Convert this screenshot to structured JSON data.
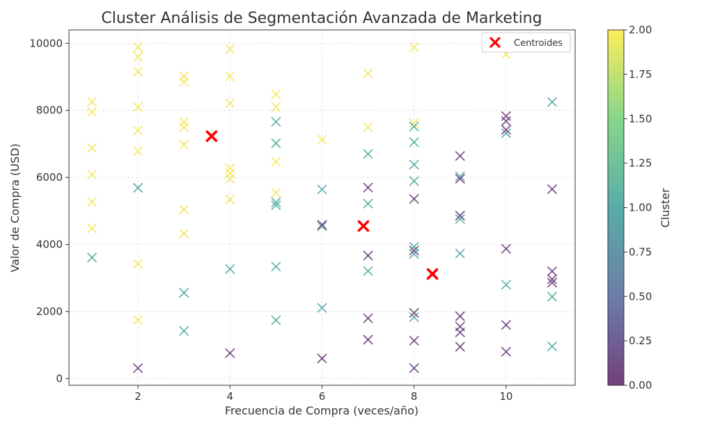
{
  "chart_data": {
    "type": "scatter",
    "title": "Cluster Análisis de Segmentación Avanzada de Marketing",
    "xlabel": "Frecuencia de Compra (veces/año)",
    "ylabel": "Valor de Compra (USD)",
    "xlim": [
      0.5,
      11.5
    ],
    "ylim": [
      -200,
      10400
    ],
    "xticks": [
      2,
      4,
      6,
      8,
      10
    ],
    "yticks": [
      0,
      2000,
      4000,
      6000,
      8000,
      10000
    ],
    "grid": true,
    "marker": "x",
    "colorbar": {
      "label": "Cluster",
      "range": [
        0,
        2
      ],
      "ticks": [
        "0.00",
        "0.25",
        "0.50",
        "0.75",
        "1.00",
        "1.25",
        "1.50",
        "1.75",
        "2.00"
      ],
      "colormap": [
        "#440154",
        "#3b528b",
        "#21918c",
        "#5ec962",
        "#fde725"
      ]
    },
    "legend": {
      "label": "Centroides",
      "position": "top-right",
      "color": "#ff0000"
    },
    "series": [
      {
        "cluster": 2,
        "color": "#f4e55a",
        "points": [
          [
            1,
            8250
          ],
          [
            1,
            7950
          ],
          [
            1,
            6880
          ],
          [
            1,
            6080
          ],
          [
            1,
            5270
          ],
          [
            1,
            4480
          ],
          [
            2,
            9880
          ],
          [
            2,
            9600
          ],
          [
            2,
            9150
          ],
          [
            2,
            8100
          ],
          [
            2,
            7400
          ],
          [
            2,
            6780
          ],
          [
            2,
            3420
          ],
          [
            2,
            1750
          ],
          [
            3,
            9020
          ],
          [
            3,
            8850
          ],
          [
            3,
            7650
          ],
          [
            3,
            7500
          ],
          [
            3,
            6990
          ],
          [
            3,
            5040
          ],
          [
            3,
            4320
          ],
          [
            4,
            9830
          ],
          [
            4,
            9010
          ],
          [
            4,
            8210
          ],
          [
            4,
            6270
          ],
          [
            4,
            6120
          ],
          [
            4,
            5960
          ],
          [
            4,
            5340
          ],
          [
            5,
            8480
          ],
          [
            5,
            8100
          ],
          [
            5,
            6470
          ],
          [
            5,
            5540
          ],
          [
            6,
            7130
          ],
          [
            7,
            9100
          ],
          [
            7,
            7500
          ],
          [
            8,
            9880
          ],
          [
            8,
            7620
          ],
          [
            10,
            9680
          ]
        ]
      },
      {
        "cluster": 1,
        "color": "#4fa9a0",
        "points": [
          [
            1,
            3610
          ],
          [
            2,
            5690
          ],
          [
            3,
            2560
          ],
          [
            3,
            1420
          ],
          [
            4,
            3270
          ],
          [
            5,
            7660
          ],
          [
            5,
            7020
          ],
          [
            5,
            5260
          ],
          [
            5,
            5170
          ],
          [
            5,
            3340
          ],
          [
            5,
            1740
          ],
          [
            6,
            5640
          ],
          [
            6,
            4540
          ],
          [
            6,
            2110
          ],
          [
            7,
            6700
          ],
          [
            7,
            5220
          ],
          [
            7,
            3210
          ],
          [
            8,
            7520
          ],
          [
            8,
            7050
          ],
          [
            8,
            6380
          ],
          [
            8,
            5890
          ],
          [
            8,
            3930
          ],
          [
            8,
            3720
          ],
          [
            8,
            1830
          ],
          [
            9,
            6030
          ],
          [
            9,
            4760
          ],
          [
            9,
            3730
          ],
          [
            10,
            7320
          ],
          [
            10,
            2800
          ],
          [
            11,
            8250
          ],
          [
            11,
            2440
          ],
          [
            11,
            960
          ]
        ]
      },
      {
        "cluster": 0,
        "color": "#6b3c7e",
        "points": [
          [
            2,
            310
          ],
          [
            4,
            760
          ],
          [
            6,
            4590
          ],
          [
            6,
            600
          ],
          [
            7,
            5700
          ],
          [
            7,
            3670
          ],
          [
            7,
            1800
          ],
          [
            7,
            1160
          ],
          [
            8,
            5360
          ],
          [
            8,
            3820
          ],
          [
            8,
            1960
          ],
          [
            8,
            1130
          ],
          [
            8,
            310
          ],
          [
            9,
            6640
          ],
          [
            9,
            5960
          ],
          [
            9,
            4860
          ],
          [
            9,
            1860
          ],
          [
            9,
            1550
          ],
          [
            9,
            1380
          ],
          [
            9,
            950
          ],
          [
            10,
            7830
          ],
          [
            10,
            7680
          ],
          [
            10,
            7420
          ],
          [
            10,
            3870
          ],
          [
            10,
            1600
          ],
          [
            10,
            800
          ],
          [
            11,
            5650
          ],
          [
            11,
            3200
          ],
          [
            11,
            2960
          ],
          [
            11,
            2860
          ]
        ]
      }
    ],
    "centroids": [
      [
        3.6,
        7230
      ],
      [
        6.9,
        4550
      ],
      [
        8.4,
        3120
      ]
    ]
  }
}
